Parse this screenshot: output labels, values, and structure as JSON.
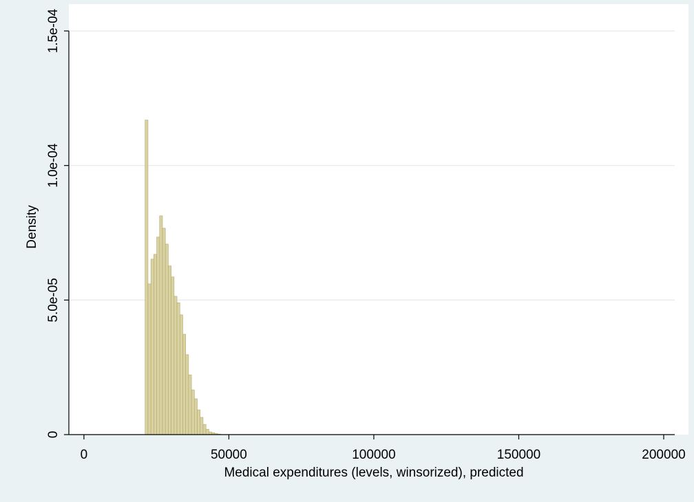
{
  "chart_data": {
    "type": "histogram",
    "x_label": "Medical expenditures (levels, winsorized), predicted",
    "y_label": "Density",
    "bins": [
      21100,
      22100,
      23100,
      24100,
      25100,
      26100,
      27100,
      28100,
      29100,
      30100,
      31100,
      32100,
      33100,
      34100,
      35100,
      36100,
      37100,
      38100,
      39100,
      40100,
      41100,
      42100,
      43100,
      44100,
      45100,
      46100,
      47100
    ],
    "values": [
      0.0001169,
      5.6e-05,
      6.52e-05,
      6.7e-05,
      7.34e-05,
      8.13e-05,
      7.67e-05,
      7.08e-05,
      6.27e-05,
      5.86e-05,
      5.14e-05,
      4.9e-05,
      4.45e-05,
      3.73e-05,
      2.97e-05,
      2.22e-05,
      1.66e-05,
      1.33e-05,
      9.2e-06,
      6.4e-06,
      3.8e-06,
      2e-06,
      1e-06,
      7e-07,
      4e-07,
      2e-07
    ],
    "color": "#d9d2a3",
    "edge_color": "#b5a86a",
    "xlim": [
      -5200,
      203800
    ],
    "ylim": [
      0,
      0.00015
    ],
    "xticks": [
      0,
      50000,
      100000,
      150000,
      200000
    ],
    "yticks": [
      {
        "value": 0,
        "label": "0"
      },
      {
        "value": 5e-05,
        "label": "5.0e-05"
      },
      {
        "value": 0.0001,
        "label": "1.0e-04"
      },
      {
        "value": 0.00015,
        "label": "1.5e-04"
      }
    ],
    "grid": true
  }
}
